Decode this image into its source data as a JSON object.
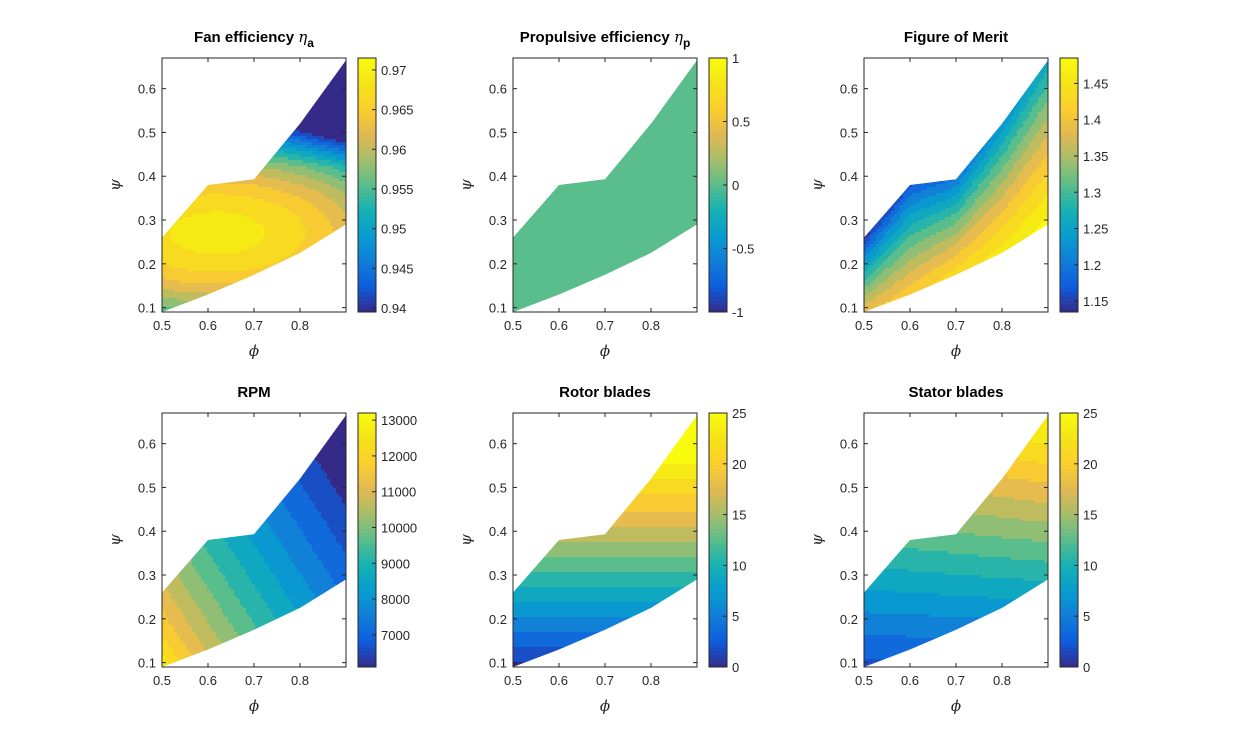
{
  "chart_data": [
    {
      "type": "contour",
      "title": "Fan efficiency",
      "title_symbol": "η",
      "title_subscript": "a",
      "xlabel": "ϕ",
      "ylabel": "ψ",
      "xlim": [
        0.5,
        0.9
      ],
      "ylim": [
        0.09,
        0.67
      ],
      "x_ticks": [
        "0.5",
        "0.6",
        "0.7",
        "0.8"
      ],
      "y_ticks": [
        "0.1",
        "0.2",
        "0.3",
        "0.4",
        "0.5",
        "0.6"
      ],
      "colorbar": {
        "limits": [
          0.9395,
          0.9715
        ],
        "ticks": [
          "0.94",
          "0.945",
          "0.95",
          "0.955",
          "0.96",
          "0.965",
          "0.97"
        ]
      },
      "field": {
        "kind": "fan",
        "peak_phi": 0.62,
        "peak_psi": 0.27,
        "peak_value": 0.969,
        "min_value": 0.94
      }
    },
    {
      "type": "contour",
      "title": "Propulsive efficiency",
      "title_symbol": "η",
      "title_subscript": "p",
      "xlabel": "ϕ",
      "ylabel": "ψ",
      "xlim": [
        0.5,
        0.9
      ],
      "ylim": [
        0.09,
        0.67
      ],
      "x_ticks": [
        "0.5",
        "0.6",
        "0.7",
        "0.8"
      ],
      "y_ticks": [
        "0.1",
        "0.2",
        "0.3",
        "0.4",
        "0.5",
        "0.6"
      ],
      "colorbar": {
        "limits": [
          -1,
          1
        ],
        "ticks": [
          "1",
          "0.5",
          "0",
          "-0.5",
          "-1"
        ]
      },
      "field": {
        "kind": "constant",
        "value": 0
      }
    },
    {
      "type": "contour",
      "title": "Figure of Merit",
      "xlabel": "ϕ",
      "ylabel": "ψ",
      "xlim": [
        0.5,
        0.9
      ],
      "ylim": [
        0.09,
        0.67
      ],
      "x_ticks": [
        "0.5",
        "0.6",
        "0.7",
        "0.8"
      ],
      "y_ticks": [
        "0.1",
        "0.2",
        "0.3",
        "0.4",
        "0.5",
        "0.6"
      ],
      "colorbar": {
        "limits": [
          1.135,
          1.485
        ],
        "ticks": [
          "1.45",
          "1.4",
          "1.35",
          "1.3",
          "1.25",
          "1.2",
          "1.15"
        ]
      },
      "field": {
        "kind": "merit",
        "value_at_min_psi": 1.48,
        "value_at_max_psi": 1.14
      }
    },
    {
      "type": "contour",
      "title": "RPM",
      "xlabel": "ϕ",
      "ylabel": "ψ",
      "xlim": [
        0.5,
        0.9
      ],
      "ylim": [
        0.09,
        0.67
      ],
      "x_ticks": [
        "0.5",
        "0.6",
        "0.7",
        "0.8"
      ],
      "y_ticks": [
        "0.1",
        "0.2",
        "0.3",
        "0.4",
        "0.5",
        "0.6"
      ],
      "colorbar": {
        "limits": [
          6100,
          13200
        ],
        "ticks": [
          "13000",
          "12000",
          "11000",
          "10000",
          "9000",
          "8000",
          "7000"
        ]
      },
      "field": {
        "kind": "rpm",
        "value_at_origin": 13000,
        "value_at_far_corner": 6200
      }
    },
    {
      "type": "contour",
      "title": "Rotor blades",
      "xlabel": "ϕ",
      "ylabel": "ψ",
      "xlim": [
        0.5,
        0.9
      ],
      "ylim": [
        0.09,
        0.67
      ],
      "x_ticks": [
        "0.5",
        "0.6",
        "0.7",
        "0.8"
      ],
      "y_ticks": [
        "0.1",
        "0.2",
        "0.3",
        "0.4",
        "0.5",
        "0.6"
      ],
      "colorbar": {
        "limits": [
          0,
          25
        ],
        "ticks": [
          "25",
          "20",
          "15",
          "10",
          "5",
          "0"
        ]
      },
      "field": {
        "kind": "rotor",
        "value_at_min_psi": 0,
        "value_at_max_psi": 25
      }
    },
    {
      "type": "contour",
      "title": "Stator blades",
      "xlabel": "ϕ",
      "ylabel": "ψ",
      "xlim": [
        0.5,
        0.9
      ],
      "ylim": [
        0.09,
        0.67
      ],
      "x_ticks": [
        "0.5",
        "0.6",
        "0.7",
        "0.8"
      ],
      "y_ticks": [
        "0.1",
        "0.2",
        "0.3",
        "0.4",
        "0.5",
        "0.6"
      ],
      "colorbar": {
        "limits": [
          0,
          25
        ],
        "ticks": [
          "25",
          "20",
          "15",
          "10",
          "5",
          "0"
        ]
      },
      "field": {
        "kind": "stator",
        "value_at_min_psi": 2,
        "value_at_max_psi": 24
      }
    }
  ],
  "domain": {
    "phi": [
      0.5,
      0.6,
      0.7,
      0.8,
      0.9
    ],
    "psi_lower": [
      0.09,
      0.13,
      0.175,
      0.225,
      0.29
    ],
    "psi_upper": [
      0.26,
      0.38,
      0.393,
      0.52,
      0.665
    ]
  },
  "colormap": "parula",
  "contour_levels": 14
}
